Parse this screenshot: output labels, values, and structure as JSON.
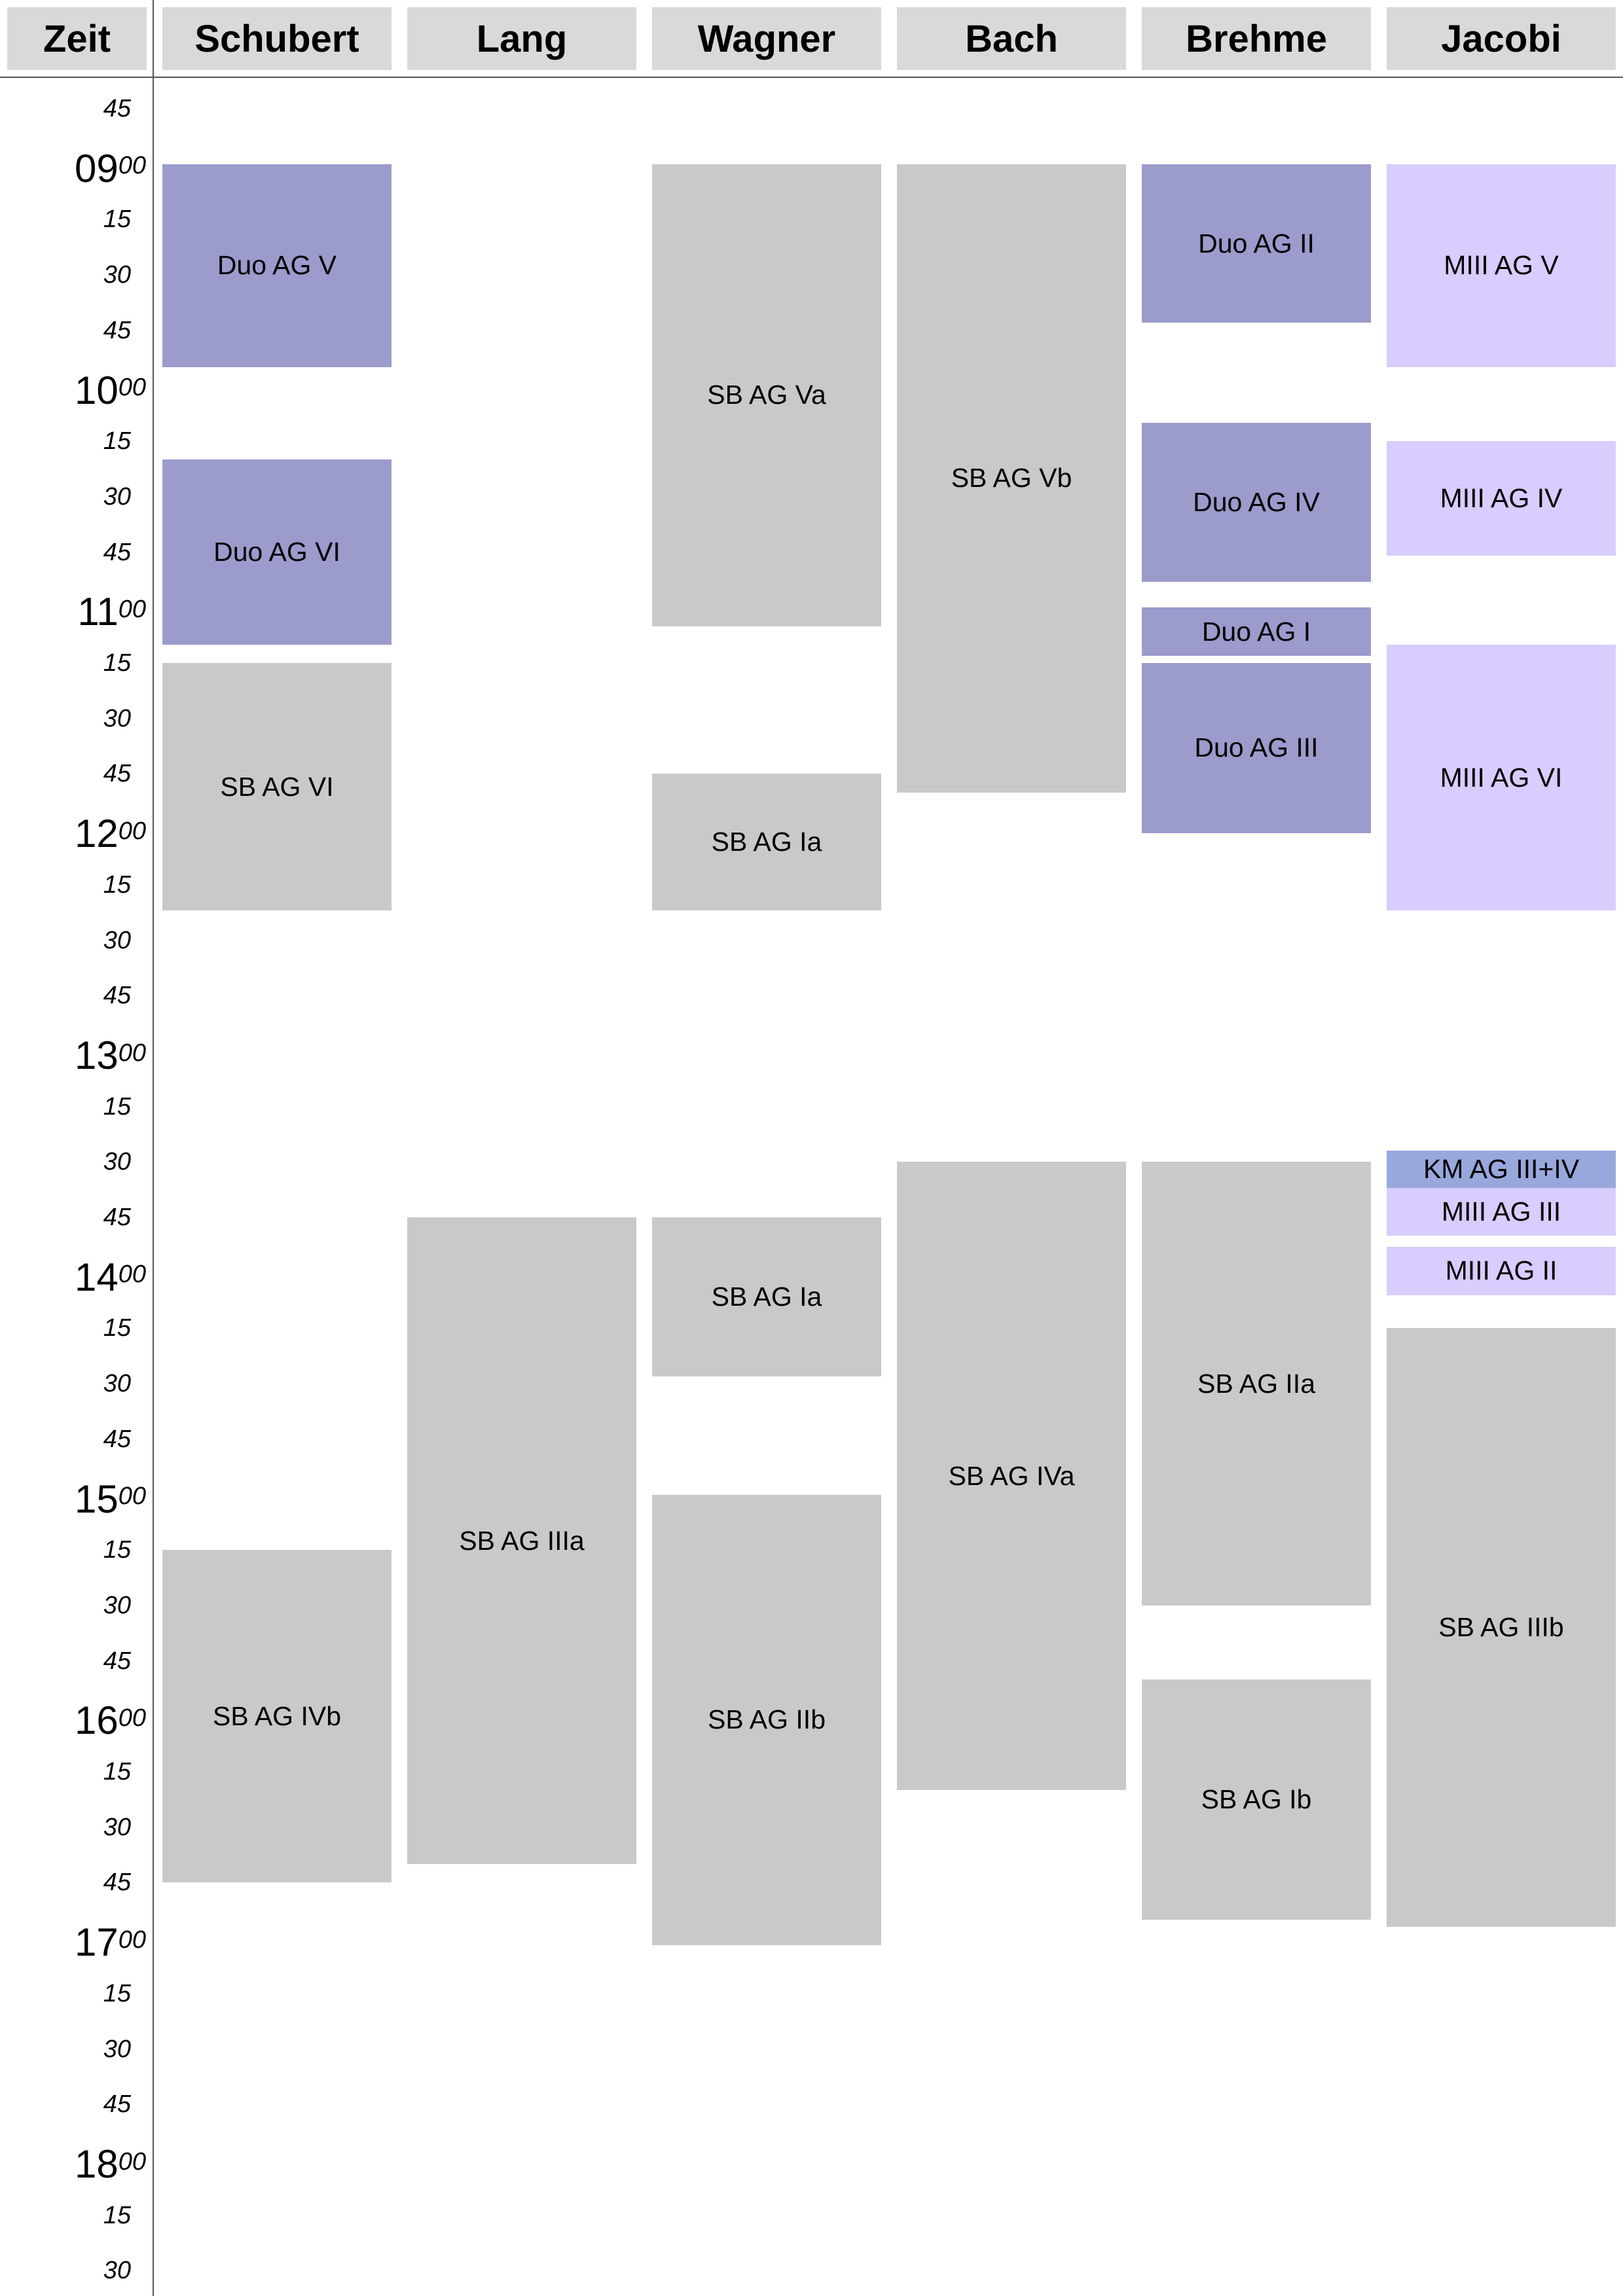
{
  "header": {
    "time_label": "Zeit",
    "columns": [
      "Schubert",
      "Lang",
      "Wagner",
      "Bach",
      "Brehme",
      "Jacobi"
    ]
  },
  "colors": {
    "header_bg": "#d9d9d9",
    "sb": "#c9c9c9",
    "duo": "#9b9bcc",
    "miii": "#d9ccff",
    "km": "#99a8dc"
  },
  "time_axis": {
    "start_label": "08:45",
    "ticks": [
      {
        "type": "minute",
        "label": "45"
      },
      {
        "type": "hour",
        "hh": "09",
        "mm": "00"
      },
      {
        "type": "minute",
        "label": "15"
      },
      {
        "type": "minute",
        "label": "30"
      },
      {
        "type": "minute",
        "label": "45"
      },
      {
        "type": "hour",
        "hh": "10",
        "mm": "00"
      },
      {
        "type": "minute",
        "label": "15"
      },
      {
        "type": "minute",
        "label": "30"
      },
      {
        "type": "minute",
        "label": "45"
      },
      {
        "type": "hour",
        "hh": "11",
        "mm": "00"
      },
      {
        "type": "minute",
        "label": "15"
      },
      {
        "type": "minute",
        "label": "30"
      },
      {
        "type": "minute",
        "label": "45"
      },
      {
        "type": "hour",
        "hh": "12",
        "mm": "00"
      },
      {
        "type": "minute",
        "label": "15"
      },
      {
        "type": "minute",
        "label": "30"
      },
      {
        "type": "minute",
        "label": "45"
      },
      {
        "type": "hour",
        "hh": "13",
        "mm": "00"
      },
      {
        "type": "minute",
        "label": "15"
      },
      {
        "type": "minute",
        "label": "30"
      },
      {
        "type": "minute",
        "label": "45"
      },
      {
        "type": "hour",
        "hh": "14",
        "mm": "00"
      },
      {
        "type": "minute",
        "label": "15"
      },
      {
        "type": "minute",
        "label": "30"
      },
      {
        "type": "minute",
        "label": "45"
      },
      {
        "type": "hour",
        "hh": "15",
        "mm": "00"
      },
      {
        "type": "minute",
        "label": "15"
      },
      {
        "type": "minute",
        "label": "30"
      },
      {
        "type": "minute",
        "label": "45"
      },
      {
        "type": "hour",
        "hh": "16",
        "mm": "00"
      },
      {
        "type": "minute",
        "label": "15"
      },
      {
        "type": "minute",
        "label": "30"
      },
      {
        "type": "minute",
        "label": "45"
      },
      {
        "type": "hour",
        "hh": "17",
        "mm": "00"
      },
      {
        "type": "minute",
        "label": "15"
      },
      {
        "type": "minute",
        "label": "30"
      },
      {
        "type": "minute",
        "label": "45"
      },
      {
        "type": "hour",
        "hh": "18",
        "mm": "00"
      },
      {
        "type": "minute",
        "label": "15"
      },
      {
        "type": "minute",
        "label": "30"
      }
    ]
  },
  "events": [
    {
      "col": 0,
      "label": "Duo AG V",
      "start": "09:00",
      "end": "09:55",
      "kind": "duo"
    },
    {
      "col": 0,
      "label": "Duo AG VI",
      "start": "10:20",
      "end": "11:10",
      "kind": "duo"
    },
    {
      "col": 0,
      "label": "SB AG VI",
      "start": "11:15",
      "end": "12:22",
      "kind": "sb"
    },
    {
      "col": 0,
      "label": "SB AG IVb",
      "start": "15:15",
      "end": "16:45",
      "kind": "sb"
    },
    {
      "col": 1,
      "label": "SB AG IIIa",
      "start": "13:45",
      "end": "16:40",
      "kind": "sb"
    },
    {
      "col": 2,
      "label": "SB AG Va",
      "start": "09:00",
      "end": "11:05",
      "kind": "sb"
    },
    {
      "col": 2,
      "label": "SB AG Ia",
      "start": "11:45",
      "end": "12:22",
      "kind": "sb"
    },
    {
      "col": 2,
      "label": "SB AG Ia",
      "start": "13:45",
      "end": "14:28",
      "kind": "sb"
    },
    {
      "col": 2,
      "label": "SB AG IIb",
      "start": "15:00",
      "end": "17:02",
      "kind": "sb"
    },
    {
      "col": 3,
      "label": "SB AG Vb",
      "start": "09:00",
      "end": "11:50",
      "kind": "sb"
    },
    {
      "col": 3,
      "label": "SB AG IVa",
      "start": "13:30",
      "end": "16:20",
      "kind": "sb"
    },
    {
      "col": 4,
      "label": "Duo AG II",
      "start": "09:00",
      "end": "09:43",
      "kind": "duo"
    },
    {
      "col": 4,
      "label": "Duo AG IV",
      "start": "10:10",
      "end": "10:53",
      "kind": "duo"
    },
    {
      "col": 4,
      "label": "Duo AG I",
      "start": "11:00",
      "end": "11:13",
      "kind": "duo"
    },
    {
      "col": 4,
      "label": "Duo AG III",
      "start": "11:15",
      "end": "12:01",
      "kind": "duo"
    },
    {
      "col": 4,
      "label": "SB AG IIa",
      "start": "13:30",
      "end": "15:30",
      "kind": "sb"
    },
    {
      "col": 4,
      "label": "SB AG Ib",
      "start": "15:50",
      "end": "16:55",
      "kind": "sb"
    },
    {
      "col": 5,
      "label": "MIII AG V",
      "start": "09:00",
      "end": "09:55",
      "kind": "miii"
    },
    {
      "col": 5,
      "label": "MIII AG IV",
      "start": "10:15",
      "end": "10:46",
      "kind": "miii"
    },
    {
      "col": 5,
      "label": "MIII AG VI",
      "start": "11:10",
      "end": "12:22",
      "kind": "miii"
    },
    {
      "col": 5,
      "label": "KM AG III+IV",
      "start": "13:27",
      "end": "13:37",
      "kind": "km"
    },
    {
      "col": 5,
      "label": "MIII AG III",
      "start": "13:37",
      "end": "13:50",
      "kind": "miii"
    },
    {
      "col": 5,
      "label": "MIII AG II",
      "start": "13:53",
      "end": "14:06",
      "kind": "miii"
    },
    {
      "col": 5,
      "label": "SB AG IIIb",
      "start": "14:15",
      "end": "16:57",
      "kind": "sb"
    }
  ]
}
